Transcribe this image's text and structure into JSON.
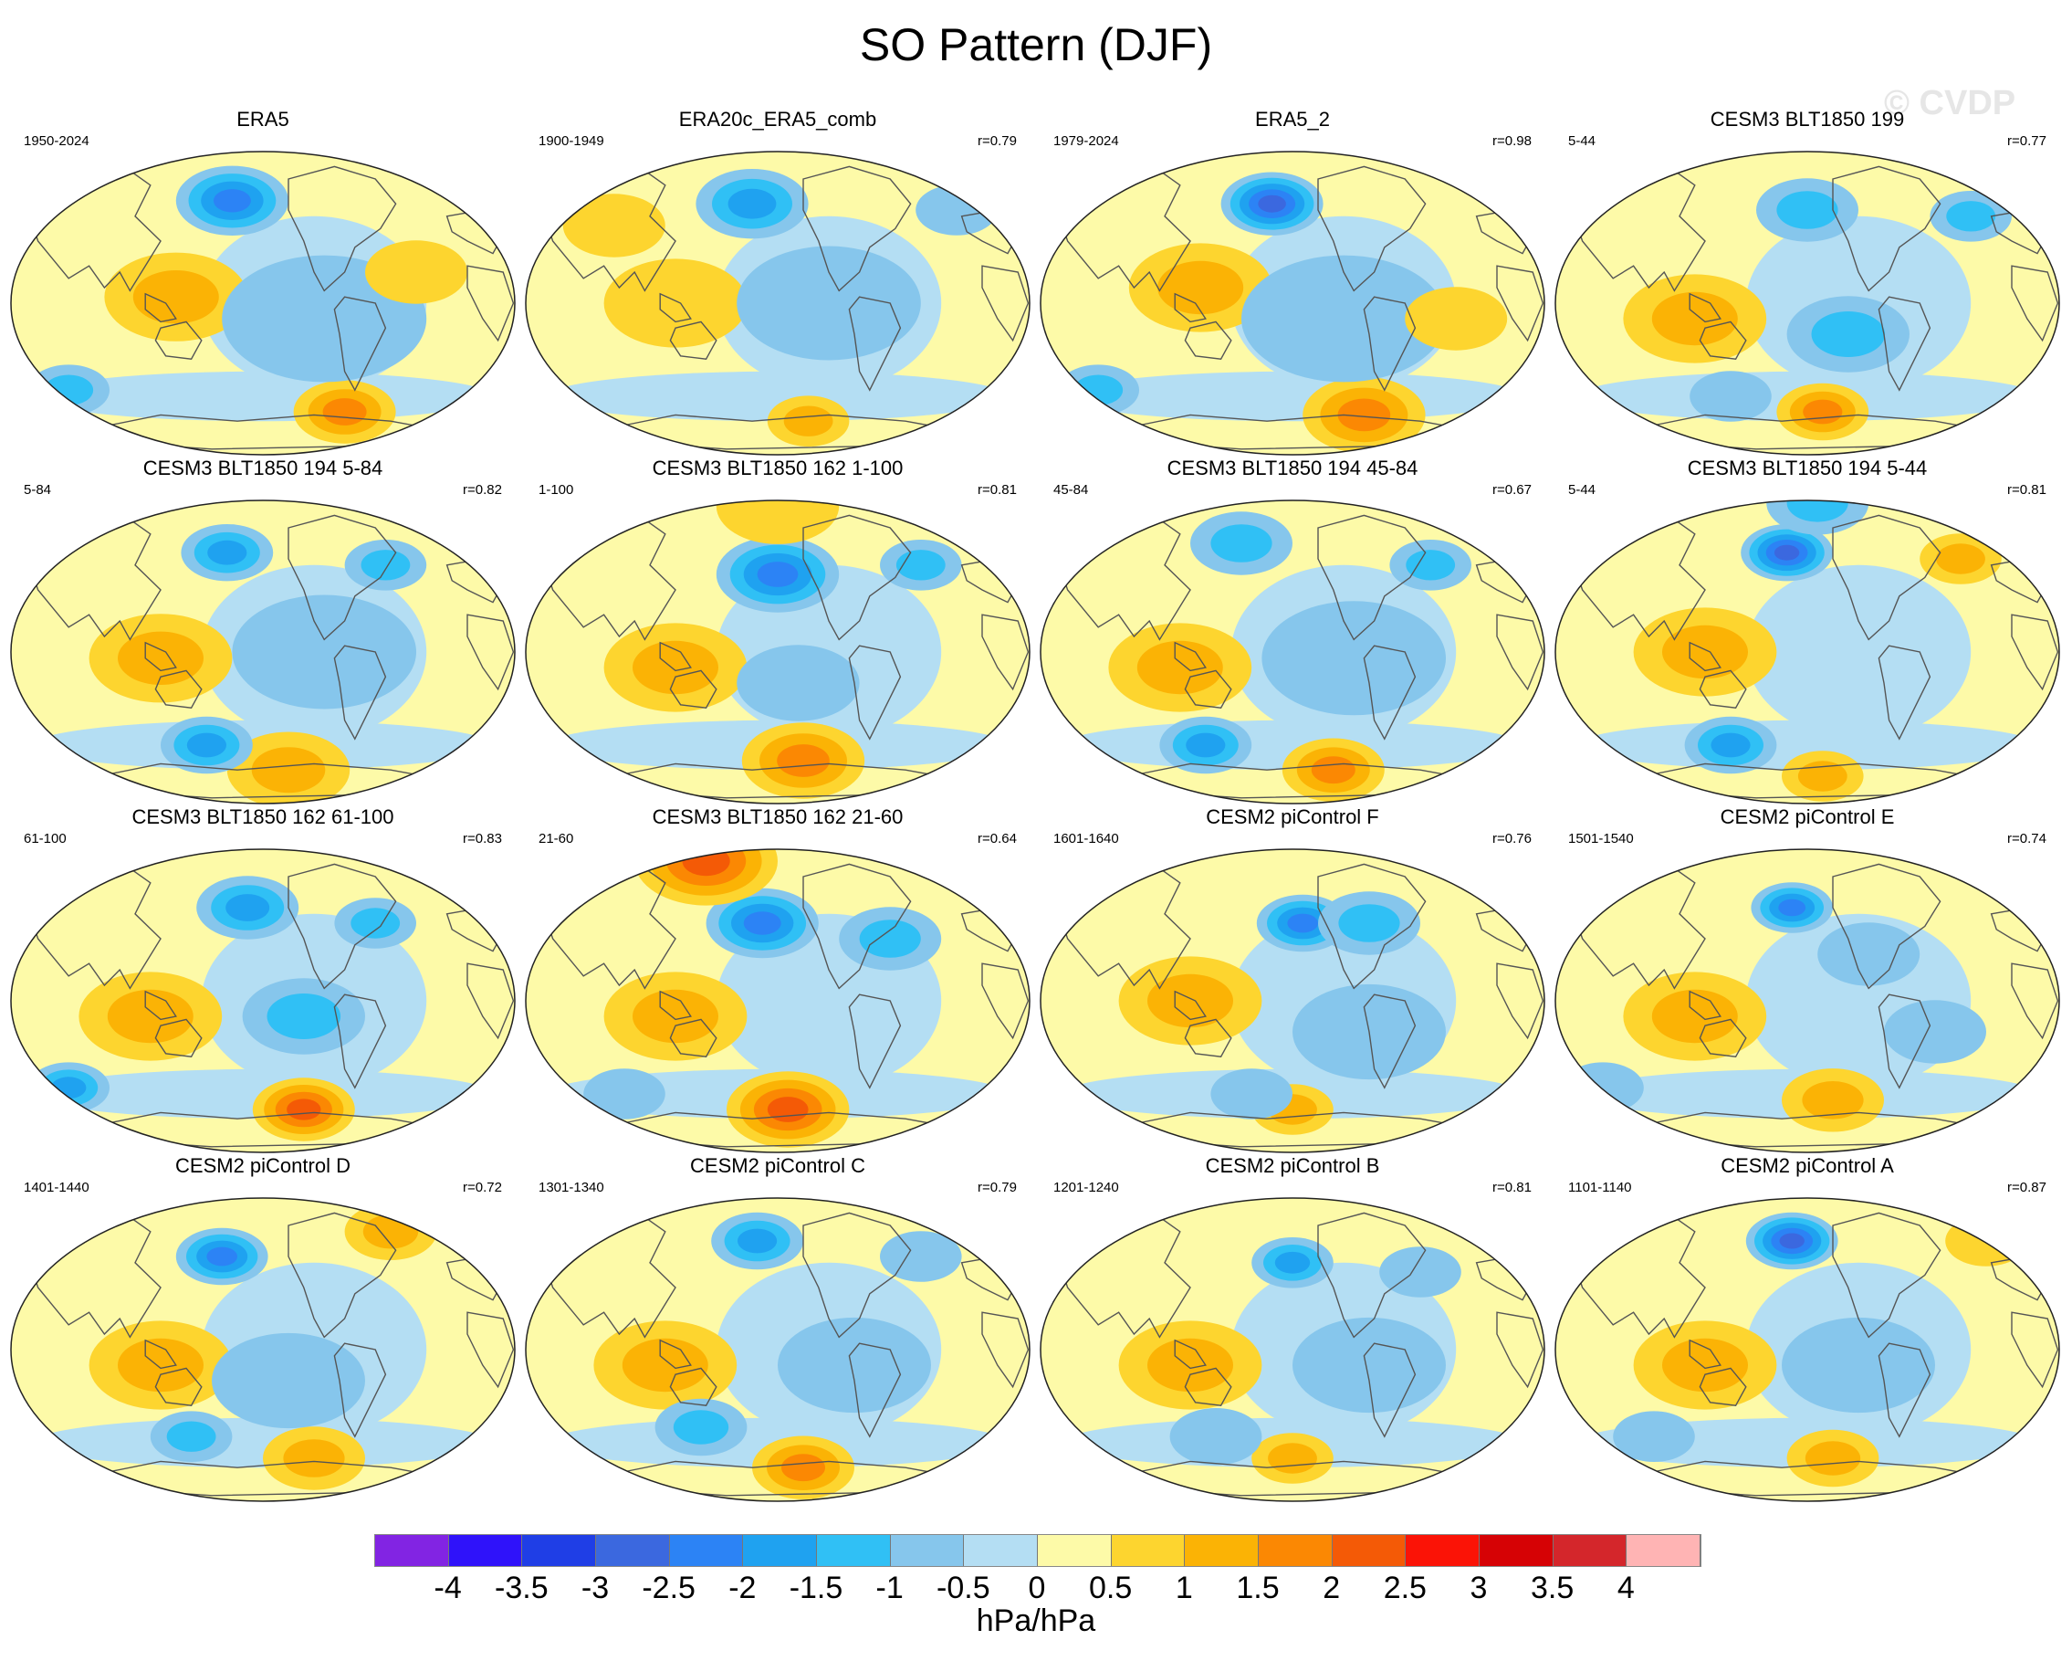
{
  "title": "SO Pattern (DJF)",
  "watermark": "© CVDP",
  "panels": [
    {
      "name": "ERA5",
      "years": "1950-2024",
      "r": "",
      "anom": [
        [
          0.44,
          0.17,
          -2,
          0.11
        ],
        [
          0.66,
          0.85,
          1.5,
          0.1
        ],
        [
          0.33,
          0.48,
          0.8,
          0.14
        ],
        [
          0.62,
          0.55,
          -0.4,
          0.2
        ],
        [
          0.12,
          0.78,
          -0.8,
          0.08
        ],
        [
          0.8,
          0.4,
          0.5,
          0.1
        ]
      ]
    },
    {
      "name": "ERA20c_ERA5_comb",
      "years": "1900-1949",
      "r": "r=0.79",
      "anom": [
        [
          0.45,
          0.18,
          -1.6,
          0.11
        ],
        [
          0.56,
          0.88,
          1.2,
          0.08
        ],
        [
          0.3,
          0.5,
          0.7,
          0.14
        ],
        [
          0.6,
          0.5,
          -0.7,
          0.18
        ],
        [
          0.85,
          0.2,
          -0.5,
          0.08
        ],
        [
          0.18,
          0.25,
          0.6,
          0.1
        ]
      ]
    },
    {
      "name": "ERA5_2",
      "years": "1979-2024",
      "r": "r=0.98",
      "anom": [
        [
          0.46,
          0.18,
          -2.4,
          0.1
        ],
        [
          0.64,
          0.86,
          1.4,
          0.12
        ],
        [
          0.32,
          0.45,
          0.9,
          0.14
        ],
        [
          0.6,
          0.55,
          -0.5,
          0.2
        ],
        [
          0.12,
          0.78,
          -0.8,
          0.08
        ],
        [
          0.82,
          0.55,
          0.5,
          0.1
        ]
      ]
    },
    {
      "name": "CESM3 BLT1850 199",
      "years": "5-44",
      "r": "r=0.77",
      "anom": [
        [
          0.5,
          0.2,
          -1.2,
          0.1
        ],
        [
          0.53,
          0.85,
          1.7,
          0.09
        ],
        [
          0.28,
          0.55,
          1.0,
          0.14
        ],
        [
          0.58,
          0.6,
          -0.9,
          0.12
        ],
        [
          0.82,
          0.22,
          -0.8,
          0.08
        ],
        [
          0.35,
          0.8,
          -0.6,
          0.08
        ]
      ]
    },
    {
      "name": "CESM3 BLT1850 194 5-84",
      "years": "5-84",
      "r": "r=0.82",
      "anom": [
        [
          0.43,
          0.18,
          -1.5,
          0.09
        ],
        [
          0.55,
          0.88,
          1.2,
          0.12
        ],
        [
          0.3,
          0.52,
          0.9,
          0.14
        ],
        [
          0.39,
          0.8,
          -1.4,
          0.09
        ],
        [
          0.74,
          0.22,
          -1.0,
          0.08
        ],
        [
          0.62,
          0.5,
          -0.5,
          0.18
        ]
      ]
    },
    {
      "name": "CESM3 BLT1850 162 1-100",
      "years": "1-100",
      "r": "r=0.81",
      "anom": [
        [
          0.5,
          0.25,
          -1.9,
          0.12
        ],
        [
          0.55,
          0.85,
          1.3,
          0.12
        ],
        [
          0.3,
          0.55,
          1.0,
          0.14
        ],
        [
          0.54,
          0.6,
          -0.7,
          0.12
        ],
        [
          0.78,
          0.22,
          -1.0,
          0.08
        ],
        [
          0.5,
          0.03,
          0.6,
          0.12
        ]
      ]
    },
    {
      "name": "CESM3 BLT1850 194 45-84",
      "years": "45-84",
      "r": "r=0.67",
      "anom": [
        [
          0.4,
          0.15,
          -1.1,
          0.1
        ],
        [
          0.58,
          0.88,
          1.6,
          0.1
        ],
        [
          0.28,
          0.55,
          0.9,
          0.14
        ],
        [
          0.33,
          0.8,
          -1.5,
          0.09
        ],
        [
          0.77,
          0.22,
          -1.2,
          0.08
        ],
        [
          0.62,
          0.52,
          -0.5,
          0.18
        ]
      ]
    },
    {
      "name": "CESM3 BLT1850 194 5-44",
      "years": "5-44",
      "r": "r=0.81",
      "anom": [
        [
          0.46,
          0.18,
          -2.6,
          0.09
        ],
        [
          0.53,
          0.9,
          1.1,
          0.08
        ],
        [
          0.3,
          0.5,
          1.0,
          0.14
        ],
        [
          0.35,
          0.8,
          -1.6,
          0.09
        ],
        [
          0.8,
          0.2,
          0.8,
          0.08
        ],
        [
          0.52,
          0.02,
          -1.2,
          0.1
        ]
      ]
    },
    {
      "name": "CESM3 BLT1850 162 61-100",
      "years": "61-100",
      "r": "r=0.83",
      "anom": [
        [
          0.47,
          0.2,
          -1.7,
          0.1
        ],
        [
          0.58,
          0.85,
          2.1,
          0.1
        ],
        [
          0.28,
          0.55,
          1.0,
          0.14
        ],
        [
          0.12,
          0.78,
          -1.5,
          0.08
        ],
        [
          0.58,
          0.55,
          -0.8,
          0.12
        ],
        [
          0.72,
          0.25,
          -0.8,
          0.08
        ]
      ]
    },
    {
      "name": "CESM3 BLT1850 162 21-60",
      "years": "21-60",
      "r": "r=0.64",
      "anom": [
        [
          0.47,
          0.25,
          -2.1,
          0.11
        ],
        [
          0.52,
          0.85,
          1.8,
          0.12
        ],
        [
          0.3,
          0.55,
          0.9,
          0.14
        ],
        [
          0.36,
          0.05,
          2.0,
          0.14
        ],
        [
          0.72,
          0.3,
          -0.8,
          0.1
        ],
        [
          0.2,
          0.8,
          -0.7,
          0.08
        ]
      ]
    },
    {
      "name": "CESM2 piControl F",
      "years": "1601-1640",
      "r": "r=0.76",
      "anom": [
        [
          0.52,
          0.25,
          -2.0,
          0.09
        ],
        [
          0.5,
          0.85,
          1.2,
          0.08
        ],
        [
          0.3,
          0.5,
          0.9,
          0.14
        ],
        [
          0.65,
          0.25,
          -0.8,
          0.1
        ],
        [
          0.42,
          0.8,
          -0.6,
          0.08
        ],
        [
          0.65,
          0.6,
          -0.5,
          0.15
        ]
      ]
    },
    {
      "name": "CESM2 piControl E",
      "years": "1501-1540",
      "r": "r=0.74",
      "anom": [
        [
          0.47,
          0.2,
          -1.8,
          0.08
        ],
        [
          0.55,
          0.82,
          0.9,
          0.1
        ],
        [
          0.28,
          0.55,
          1.0,
          0.14
        ],
        [
          0.1,
          0.78,
          -0.7,
          0.08
        ],
        [
          0.62,
          0.35,
          -0.5,
          0.1
        ],
        [
          0.75,
          0.6,
          -0.4,
          0.1
        ]
      ]
    },
    {
      "name": "CESM2 piControl D",
      "years": "1401-1440",
      "r": "r=0.72",
      "anom": [
        [
          0.42,
          0.2,
          -1.8,
          0.09
        ],
        [
          0.6,
          0.85,
          0.9,
          0.1
        ],
        [
          0.3,
          0.55,
          0.9,
          0.14
        ],
        [
          0.75,
          0.12,
          1.1,
          0.09
        ],
        [
          0.36,
          0.78,
          -1.0,
          0.08
        ],
        [
          0.55,
          0.6,
          -0.4,
          0.15
        ]
      ]
    },
    {
      "name": "CESM2 piControl C",
      "years": "1301-1340",
      "r": "r=0.79",
      "anom": [
        [
          0.46,
          0.15,
          -1.4,
          0.09
        ],
        [
          0.55,
          0.88,
          1.5,
          0.1
        ],
        [
          0.28,
          0.55,
          0.9,
          0.14
        ],
        [
          0.35,
          0.75,
          -1.0,
          0.09
        ],
        [
          0.78,
          0.2,
          -0.6,
          0.08
        ],
        [
          0.65,
          0.55,
          -0.4,
          0.15
        ]
      ]
    },
    {
      "name": "CESM2 piControl B",
      "years": "1201-1240",
      "r": "r=0.81",
      "anom": [
        [
          0.5,
          0.22,
          -1.6,
          0.08
        ],
        [
          0.5,
          0.85,
          0.9,
          0.08
        ],
        [
          0.3,
          0.55,
          0.9,
          0.14
        ],
        [
          0.35,
          0.78,
          -0.6,
          0.09
        ],
        [
          0.65,
          0.55,
          -0.4,
          0.15
        ],
        [
          0.75,
          0.25,
          -0.5,
          0.08
        ]
      ]
    },
    {
      "name": "CESM2 piControl A",
      "years": "1101-1140",
      "r": "r=0.87",
      "anom": [
        [
          0.47,
          0.15,
          -2.3,
          0.09
        ],
        [
          0.55,
          0.85,
          1.1,
          0.09
        ],
        [
          0.3,
          0.55,
          1.0,
          0.14
        ],
        [
          0.85,
          0.15,
          0.7,
          0.08
        ],
        [
          0.6,
          0.55,
          -0.4,
          0.15
        ],
        [
          0.2,
          0.78,
          -0.6,
          0.08
        ]
      ]
    }
  ],
  "colorbar": {
    "colors": [
      "#8224e3",
      "#2f12fa",
      "#1f3ee6",
      "#3b68df",
      "#2c83f5",
      "#1fa2f0",
      "#30c0f5",
      "#86c6ec",
      "#b4def3",
      "#fdfaa8",
      "#fdd52f",
      "#fbb305",
      "#fb8803",
      "#f45a06",
      "#fb1306",
      "#d60205",
      "#d4262b",
      "#ffb4b4"
    ],
    "labels": [
      "-4",
      "-3.5",
      "-3",
      "-2.5",
      "-2",
      "-1.5",
      "-1",
      "-0.5",
      "0",
      "0.5",
      "1",
      "1.5",
      "2",
      "2.5",
      "3",
      "3.5",
      "4"
    ],
    "units": "hPa/hPa"
  }
}
